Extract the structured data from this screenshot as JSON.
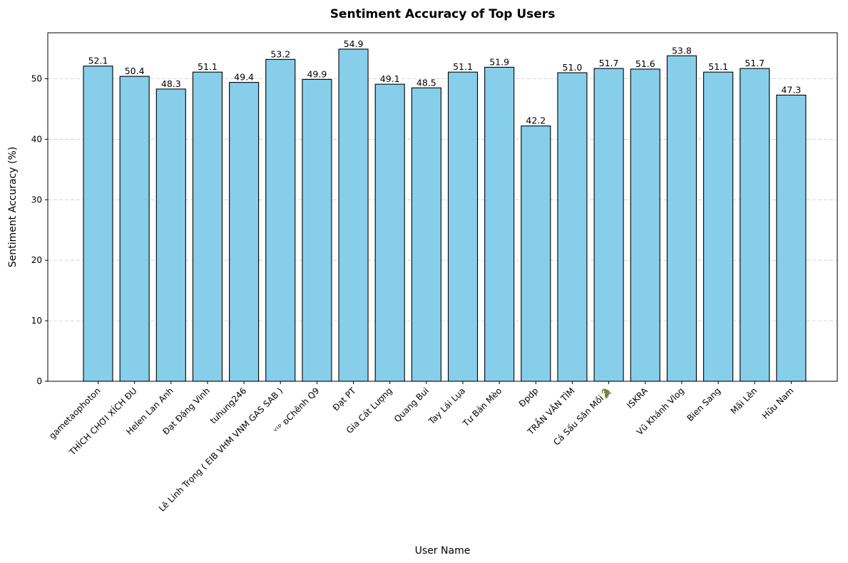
{
  "chart_data": {
    "type": "bar",
    "title": "Sentiment Accuracy of Top Users",
    "xlabel": "User Name",
    "ylabel": "Sentiment Accuracy (%)",
    "ylim": [
      0,
      57.6
    ],
    "yticks": [
      0,
      10,
      20,
      30,
      40,
      50
    ],
    "grid": "y-dashed",
    "categories": [
      "gametaophoton",
      "THÍCH CHƠI XÍCH ĐU",
      "Helen Lan Anh",
      "Đạt Đặng Vinh",
      "tuhung246",
      "Lê Linh Trọng ( EIB VHM VNM GAS SAB )",
      "ᵛᶦᵖ ʚChênh Q9",
      "Đạt PT",
      "Gia Cát Lượng",
      "Quang Bui",
      "Tay Lái Lụa",
      "Tư Bản Mèo",
      "Đpdp",
      "TRẦN VĂN TÌM",
      "Cá Sấu Săn Mồi🐊",
      "ISKRA",
      "Vũ Khánh Vlog",
      "Bien Sang",
      "Mãi Lên",
      "Hữu Nam"
    ],
    "values": [
      52.1,
      50.4,
      48.3,
      51.1,
      49.4,
      53.2,
      49.9,
      54.9,
      49.1,
      48.5,
      51.1,
      51.9,
      42.2,
      51.0,
      51.7,
      51.6,
      53.8,
      51.1,
      51.7,
      47.3
    ],
    "value_labels": [
      "52.1",
      "50.4",
      "48.3",
      "51.1",
      "49.4",
      "53.2",
      "49.9",
      "54.9",
      "49.1",
      "48.5",
      "51.1",
      "51.9",
      "42.2",
      "51.0",
      "51.7",
      "51.6",
      "53.8",
      "51.1",
      "51.7",
      "47.3"
    ],
    "colors": {
      "bar_fill": "#87ceeb",
      "bar_edge": "#000000",
      "grid": "#cccccc",
      "axis": "#000000"
    }
  }
}
